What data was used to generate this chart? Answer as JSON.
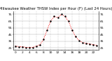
{
  "title": "Milwaukee Weather THSW Index per Hour (F) (Last 24 Hours)",
  "hours": [
    0,
    1,
    2,
    3,
    4,
    5,
    6,
    7,
    8,
    9,
    10,
    11,
    12,
    13,
    14,
    15,
    16,
    17,
    18,
    19,
    20,
    21,
    22,
    23
  ],
  "values": [
    28,
    27,
    27,
    26,
    26,
    26,
    28,
    30,
    38,
    52,
    65,
    72,
    70,
    75,
    72,
    65,
    52,
    42,
    36,
    33,
    32,
    31,
    30,
    29
  ],
  "ylim": [
    22,
    80
  ],
  "yticks_left": [
    25,
    35,
    45,
    55,
    65,
    75
  ],
  "ytick_labels": [
    "25",
    "35",
    "45",
    "55",
    "65",
    "75"
  ],
  "line_color": "#ff0000",
  "marker_color": "#000000",
  "bg_color": "#ffffff",
  "grid_color": "#999999",
  "title_fontsize": 3.8,
  "tick_fontsize": 3.2
}
